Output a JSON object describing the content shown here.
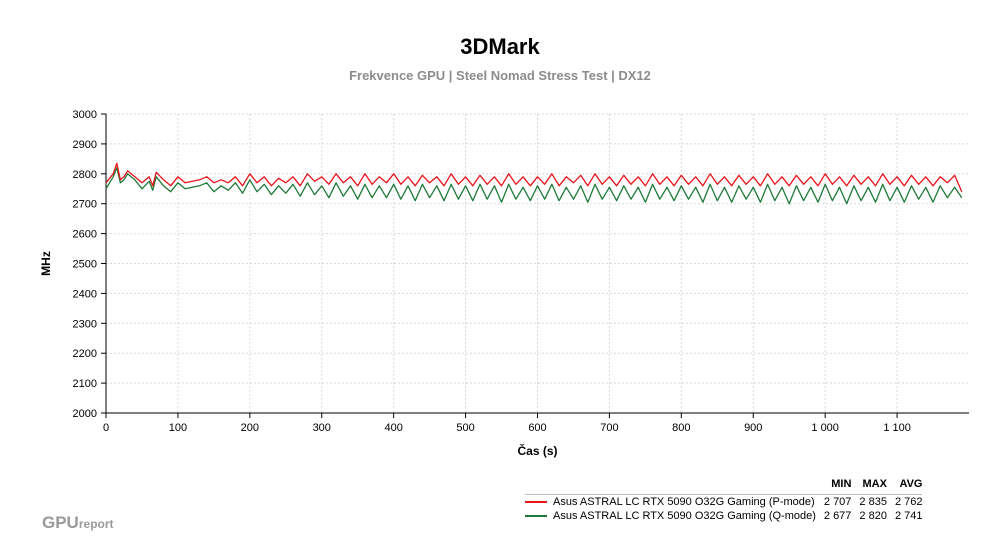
{
  "chart_data": {
    "type": "line",
    "title": "3DMark",
    "subtitle": "Frekvence GPU | Steel Nomad Stress Test | DX12",
    "xlabel": "Čas (s)",
    "ylabel": "MHz",
    "xlim": [
      0,
      1200
    ],
    "ylim": [
      2000,
      3000
    ],
    "x_ticks": [
      0,
      100,
      200,
      300,
      400,
      500,
      600,
      700,
      800,
      900,
      1000,
      1100
    ],
    "x_tick_labels": [
      "0",
      "100",
      "200",
      "300",
      "400",
      "500",
      "600",
      "700",
      "800",
      "900",
      "1 000",
      "1 100"
    ],
    "y_ticks": [
      2000,
      2100,
      2200,
      2300,
      2400,
      2500,
      2600,
      2700,
      2800,
      2900,
      3000
    ],
    "y_tick_labels": [
      "2000",
      "2100",
      "2200",
      "2300",
      "2400",
      "2500",
      "2600",
      "2700",
      "2800",
      "2900",
      "3000"
    ],
    "grid": "dotted",
    "legend_position": "bottom-right",
    "legend_headers": [
      "MIN",
      "MAX",
      "AVG"
    ],
    "series": [
      {
        "name": "Asus ASTRAL LC RTX 5090 O32G Gaming (P-mode)",
        "color": "#e8141a",
        "min": "2 707",
        "max": "2 835",
        "avg": "2 762",
        "x": [
          0,
          10,
          15,
          20,
          25,
          30,
          40,
          50,
          60,
          65,
          70,
          80,
          90,
          100,
          110,
          130,
          140,
          150,
          160,
          170,
          180,
          190,
          200,
          210,
          220,
          230,
          240,
          250,
          260,
          270,
          280,
          290,
          300,
          310,
          320,
          330,
          340,
          350,
          360,
          370,
          380,
          390,
          400,
          410,
          420,
          430,
          440,
          450,
          460,
          470,
          480,
          490,
          500,
          510,
          520,
          530,
          540,
          550,
          560,
          570,
          580,
          590,
          600,
          610,
          620,
          630,
          640,
          650,
          660,
          670,
          680,
          690,
          700,
          710,
          720,
          730,
          740,
          750,
          760,
          770,
          780,
          790,
          800,
          810,
          820,
          830,
          840,
          850,
          860,
          870,
          880,
          890,
          900,
          910,
          920,
          930,
          940,
          950,
          960,
          970,
          980,
          990,
          1000,
          1010,
          1020,
          1030,
          1040,
          1050,
          1060,
          1070,
          1080,
          1090,
          1100,
          1110,
          1120,
          1130,
          1140,
          1150,
          1160,
          1170,
          1180,
          1190
        ],
        "values": [
          2770,
          2800,
          2835,
          2780,
          2790,
          2810,
          2790,
          2770,
          2790,
          2760,
          2805,
          2780,
          2760,
          2790,
          2770,
          2780,
          2790,
          2770,
          2780,
          2770,
          2790,
          2760,
          2800,
          2770,
          2790,
          2760,
          2785,
          2770,
          2790,
          2760,
          2800,
          2775,
          2790,
          2765,
          2800,
          2770,
          2790,
          2760,
          2800,
          2765,
          2790,
          2770,
          2800,
          2765,
          2790,
          2760,
          2795,
          2770,
          2790,
          2760,
          2800,
          2765,
          2790,
          2760,
          2795,
          2765,
          2790,
          2760,
          2800,
          2765,
          2790,
          2760,
          2790,
          2765,
          2800,
          2760,
          2790,
          2770,
          2795,
          2760,
          2800,
          2765,
          2790,
          2760,
          2795,
          2765,
          2790,
          2760,
          2800,
          2765,
          2790,
          2760,
          2795,
          2765,
          2790,
          2760,
          2800,
          2765,
          2790,
          2760,
          2795,
          2765,
          2790,
          2760,
          2800,
          2765,
          2790,
          2760,
          2795,
          2765,
          2790,
          2760,
          2800,
          2765,
          2790,
          2760,
          2795,
          2765,
          2790,
          2760,
          2800,
          2765,
          2790,
          2760,
          2795,
          2765,
          2790,
          2760,
          2790,
          2770,
          2795,
          2740
        ]
      },
      {
        "name": "Asus ASTRAL LC RTX 5090 O32G Gaming (Q-mode)",
        "color": "#1f7a3a",
        "min": "2 677",
        "max": "2 820",
        "avg": "2 741",
        "x": [
          0,
          10,
          15,
          20,
          25,
          30,
          40,
          50,
          60,
          65,
          70,
          80,
          90,
          100,
          110,
          130,
          140,
          150,
          160,
          170,
          180,
          190,
          200,
          210,
          220,
          230,
          240,
          250,
          260,
          270,
          280,
          290,
          300,
          310,
          320,
          330,
          340,
          350,
          360,
          370,
          380,
          390,
          400,
          410,
          420,
          430,
          440,
          450,
          460,
          470,
          480,
          490,
          500,
          510,
          520,
          530,
          540,
          550,
          560,
          570,
          580,
          590,
          600,
          610,
          620,
          630,
          640,
          650,
          660,
          670,
          680,
          690,
          700,
          710,
          720,
          730,
          740,
          750,
          760,
          770,
          780,
          790,
          800,
          810,
          820,
          830,
          840,
          850,
          860,
          870,
          880,
          890,
          900,
          910,
          920,
          930,
          940,
          950,
          960,
          970,
          980,
          990,
          1000,
          1010,
          1020,
          1030,
          1040,
          1050,
          1060,
          1070,
          1080,
          1090,
          1100,
          1110,
          1120,
          1130,
          1140,
          1150,
          1160,
          1170,
          1180,
          1190
        ],
        "values": [
          2750,
          2790,
          2820,
          2770,
          2780,
          2800,
          2780,
          2750,
          2775,
          2745,
          2790,
          2760,
          2740,
          2770,
          2750,
          2760,
          2770,
          2740,
          2760,
          2745,
          2770,
          2735,
          2780,
          2740,
          2765,
          2730,
          2760,
          2735,
          2765,
          2725,
          2770,
          2730,
          2760,
          2720,
          2770,
          2725,
          2760,
          2715,
          2765,
          2720,
          2760,
          2720,
          2765,
          2715,
          2760,
          2710,
          2765,
          2720,
          2760,
          2710,
          2765,
          2715,
          2760,
          2710,
          2765,
          2715,
          2760,
          2705,
          2765,
          2715,
          2755,
          2710,
          2760,
          2715,
          2765,
          2710,
          2755,
          2715,
          2760,
          2705,
          2765,
          2715,
          2755,
          2710,
          2760,
          2715,
          2755,
          2705,
          2765,
          2715,
          2755,
          2710,
          2760,
          2715,
          2755,
          2705,
          2765,
          2710,
          2755,
          2705,
          2760,
          2715,
          2755,
          2705,
          2765,
          2710,
          2755,
          2700,
          2760,
          2710,
          2755,
          2705,
          2765,
          2710,
          2755,
          2700,
          2760,
          2710,
          2755,
          2705,
          2765,
          2710,
          2755,
          2705,
          2760,
          2715,
          2755,
          2705,
          2760,
          2720,
          2755,
          2720
        ]
      }
    ]
  },
  "branding": {
    "part1": "GPU",
    "part2": "report"
  }
}
